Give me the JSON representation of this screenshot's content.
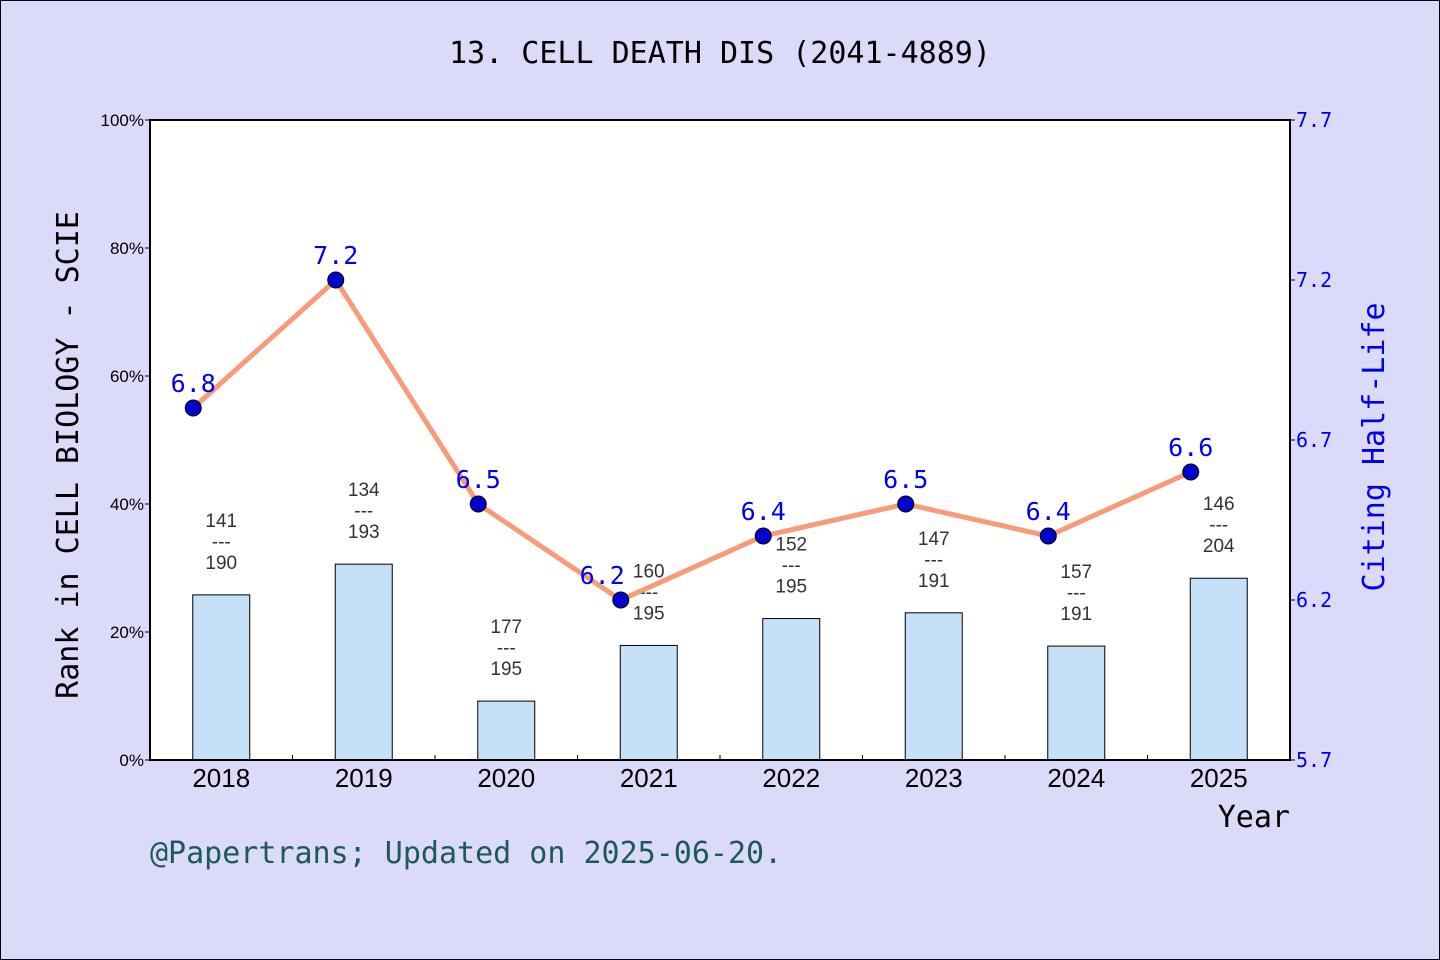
{
  "chart_data": {
    "type": "bar+line",
    "title": "13. CELL DEATH DIS (2041-4889)",
    "categories": [
      "2018",
      "2019",
      "2020",
      "2021",
      "2022",
      "2023",
      "2024",
      "2025"
    ],
    "xlabel": "Year",
    "ylabel_left": "Rank in CELL BIOLOGY - SCIE",
    "ylabel_right": "Citing Half-Life",
    "ylim_left": [
      0,
      100
    ],
    "left_ticks": [
      "0%",
      "20%",
      "40%",
      "60%",
      "80%",
      "100%"
    ],
    "ylim_right": [
      5.7,
      7.7
    ],
    "right_ticks": [
      "5.7",
      "6.2",
      "6.7",
      "7.2",
      "7.7"
    ],
    "bars": {
      "rank": [
        141,
        134,
        177,
        160,
        152,
        147,
        157,
        146
      ],
      "total": [
        190,
        193,
        195,
        195,
        195,
        191,
        191,
        204
      ],
      "percent": [
        25.8,
        30.6,
        9.2,
        17.9,
        22.1,
        23.0,
        17.8,
        28.4
      ],
      "color": "#c5e0f7"
    },
    "line": {
      "values": [
        6.8,
        7.2,
        6.5,
        6.2,
        6.4,
        6.5,
        6.4,
        6.6
      ],
      "labels": [
        "6.8",
        "7.2",
        "6.5",
        "6.2",
        "6.4",
        "6.5",
        "6.4",
        "6.6"
      ],
      "line_color": "#f99a78",
      "marker_color": "#0000cc",
      "label_color": "#0000ee"
    },
    "separator": "---",
    "grid": false
  },
  "footer": "@Papertrans; Updated on 2025-06-20."
}
